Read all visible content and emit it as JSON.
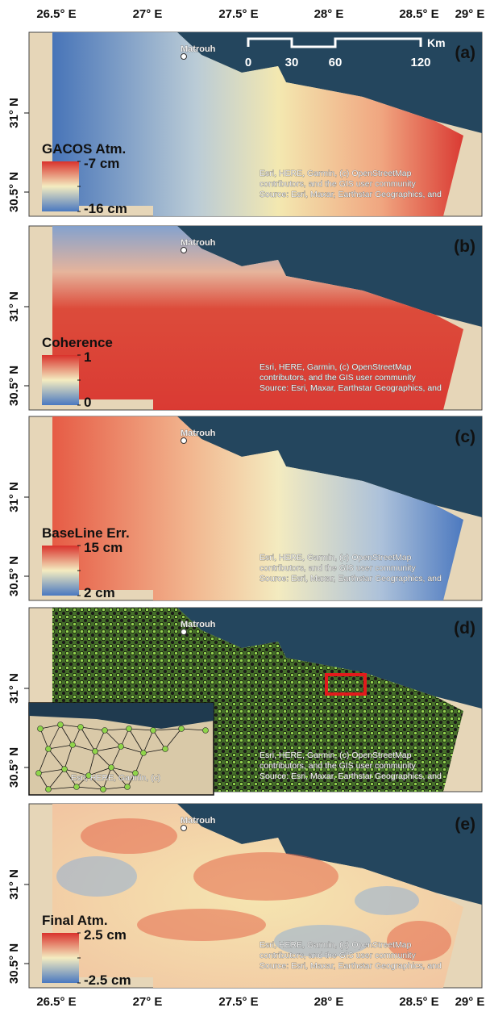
{
  "x_labels": [
    "26.5° E",
    "27° E",
    "27.5° E",
    "28° E",
    "28.5° E",
    "29° E"
  ],
  "place": "Matrouh",
  "scale_bar": {
    "unit": "Km",
    "labels": [
      "0",
      "30",
      "60",
      "120"
    ]
  },
  "attribution": [
    "Esri, HERE, Garmin, (c) OpenStreetMap",
    "contributors, and the GIS user community",
    "Source: Esri, Maxar, Earthstar Geographics, and"
  ],
  "inset_attribution": "Esri, HERE, Garmin, (c)",
  "panels": [
    {
      "label": "(a)",
      "y_labels": [
        "31° N",
        "30.5° N"
      ],
      "legend_title": "GACOS Atm.",
      "legend_max": "-7 cm",
      "legend_min": "-16 cm"
    },
    {
      "label": "(b)",
      "y_labels": [
        "31° N",
        "30.5° N"
      ],
      "legend_title": "Coherence",
      "legend_max": "1",
      "legend_min": "0"
    },
    {
      "label": "(c)",
      "y_labels": [
        "31° N",
        "30.5° N"
      ],
      "legend_title": "BaseLine Err.",
      "legend_max": "15 cm",
      "legend_min": "2 cm"
    },
    {
      "label": "(d)",
      "y_labels": [
        "31° N",
        "30.5° N"
      ]
    },
    {
      "label": "(e)",
      "y_labels": [
        "31° N",
        "30.5° N"
      ],
      "legend_title": "Final Atm.",
      "legend_max": "2.5 cm",
      "legend_min": "-2.5 cm"
    }
  ]
}
